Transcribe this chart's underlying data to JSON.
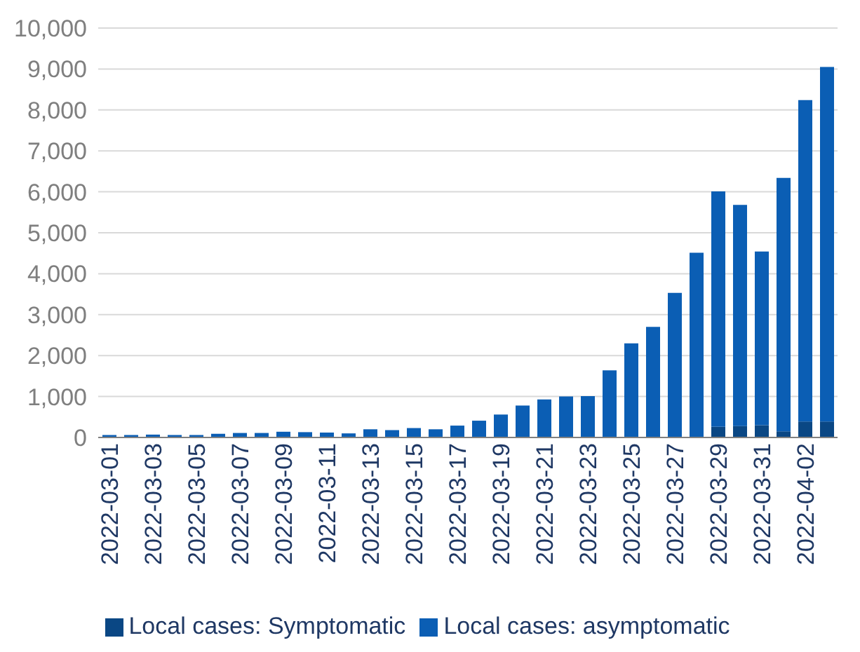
{
  "chart_data": {
    "type": "bar",
    "stacked": true,
    "categories": [
      "2022-03-01",
      null,
      "2022-03-03",
      null,
      "2022-03-05",
      null,
      "2022-03-07",
      null,
      "2022-03-09",
      null,
      "2022-03-11",
      null,
      "2022-03-13",
      null,
      "2022-03-15",
      null,
      "2022-03-17",
      null,
      "2022-03-19",
      null,
      "2022-03-21",
      null,
      "2022-03-23",
      null,
      "2022-03-25",
      null,
      "2022-03-27",
      null,
      "2022-03-29",
      null,
      "2022-03-31",
      null,
      "2022-04-02",
      null
    ],
    "series": [
      {
        "name": "Local cases: Symptomatic",
        "color": "#0a4784",
        "values": [
          null,
          null,
          null,
          null,
          null,
          null,
          null,
          null,
          null,
          null,
          null,
          null,
          null,
          null,
          null,
          null,
          null,
          null,
          null,
          null,
          null,
          null,
          null,
          null,
          null,
          null,
          null,
          null,
          260,
          280,
          300,
          150,
          390,
          390
        ]
      },
      {
        "name": "Local cases: asymptomatic",
        "color": "#0b5eb4",
        "values": [
          60,
          60,
          70,
          60,
          60,
          90,
          110,
          110,
          140,
          130,
          120,
          100,
          200,
          180,
          230,
          200,
          290,
          410,
          560,
          780,
          930,
          1000,
          1010,
          1640,
          2300,
          2700,
          3530,
          4510,
          5750,
          5400,
          4240,
          6190,
          7850,
          8660
        ]
      }
    ],
    "ylim": [
      0,
      10000
    ],
    "yticks": [
      0,
      {
        "value": 1000,
        "label": "1,000"
      },
      {
        "value": 2000,
        "label": "2,000"
      },
      {
        "value": 3000,
        "label": "3,000"
      },
      {
        "value": 4000,
        "label": "4,000"
      },
      {
        "value": 5000,
        "label": "5,000"
      },
      {
        "value": 6000,
        "label": "6,000"
      },
      {
        "value": 7000,
        "label": "7,000"
      },
      {
        "value": 8000,
        "label": "8,000"
      },
      {
        "value": 9000,
        "label": "9,000"
      },
      {
        "value": 10000,
        "label": "10,000"
      }
    ],
    "grid": "y",
    "legend": "bottom"
  }
}
